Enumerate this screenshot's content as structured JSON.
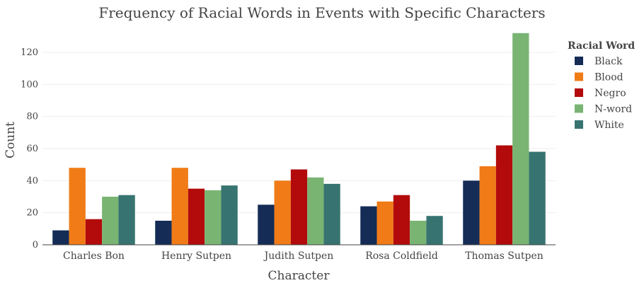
{
  "chart_data": {
    "type": "bar",
    "title": "Frequency of Racial Words in Events with Specific Characters",
    "xlabel": "Character",
    "ylabel": "Count",
    "categories": [
      "Charles Bon",
      "Henry Sutpen",
      "Judith Sutpen",
      "Rosa Coldfield",
      "Thomas Sutpen"
    ],
    "ylim": [
      0,
      135
    ],
    "yticks": [
      0,
      20,
      40,
      60,
      80,
      100,
      120
    ],
    "grid": true,
    "legend_title": "Racial Word",
    "legend_position": "right",
    "series": [
      {
        "name": "Black",
        "color": "#142c56",
        "values": [
          9,
          15,
          25,
          24,
          40
        ]
      },
      {
        "name": "Blood",
        "color": "#f07b17",
        "values": [
          48,
          48,
          40,
          27,
          49
        ]
      },
      {
        "name": "Negro",
        "color": "#b30b0b",
        "values": [
          16,
          35,
          47,
          31,
          62
        ]
      },
      {
        "name": "N-word",
        "color": "#79b473",
        "values": [
          30,
          34,
          42,
          15,
          132
        ]
      },
      {
        "name": "White",
        "color": "#377471",
        "values": [
          31,
          37,
          38,
          18,
          58
        ]
      }
    ]
  }
}
